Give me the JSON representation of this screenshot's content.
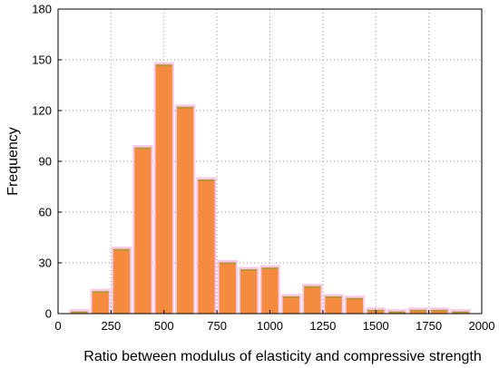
{
  "chart_data": {
    "type": "bar",
    "title": "",
    "xlabel": "Ratio between modulus of elasticity and compressive strength",
    "ylabel": "Frequency",
    "xlim": [
      0,
      2000
    ],
    "ylim": [
      0,
      180
    ],
    "x_ticks": [
      0,
      250,
      500,
      750,
      1000,
      1250,
      1500,
      1750,
      2000
    ],
    "y_ticks": [
      0,
      30,
      60,
      90,
      120,
      150,
      180
    ],
    "grid": true,
    "bin_width": 100,
    "x": [
      100,
      200,
      300,
      400,
      500,
      600,
      700,
      800,
      900,
      1000,
      1100,
      1200,
      1300,
      1400,
      1500,
      1600,
      1700,
      1800,
      1900
    ],
    "values": [
      1,
      13,
      38,
      98,
      147,
      122,
      79,
      30,
      26,
      27,
      10,
      16,
      10,
      9,
      2,
      1,
      2,
      2,
      1
    ],
    "colors": {
      "bar_fill": "#f58b3f",
      "bar_halo": "#f6b5dc",
      "bar_edge": "#b8963a"
    }
  }
}
